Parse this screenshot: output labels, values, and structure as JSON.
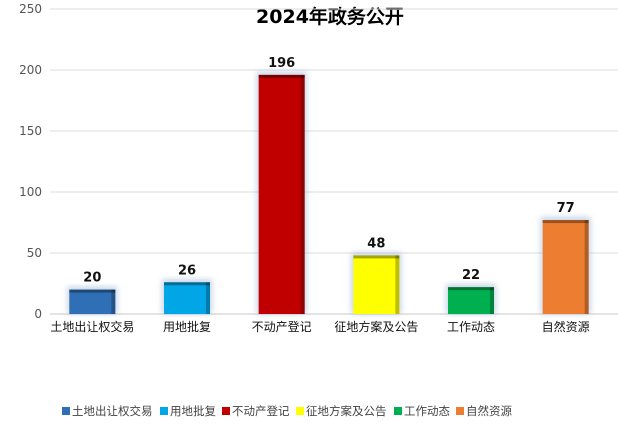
{
  "chart_data": {
    "type": "bar",
    "title": "2024年政务公开",
    "categories": [
      "土地出让权交易",
      "用地批复",
      "不动产登记",
      "征地方案及公告",
      "工作动态",
      "自然资源"
    ],
    "values": [
      20,
      26,
      196,
      48,
      22,
      77
    ],
    "colors": [
      "#2f6fb5",
      "#00a6e6",
      "#c00000",
      "#ffff00",
      "#00b050",
      "#ed7d31"
    ],
    "ylim": [
      0,
      250
    ],
    "yticks": [
      0,
      50,
      100,
      150,
      200,
      250
    ],
    "grid": true,
    "legend_position": "bottom",
    "legend": [
      "土地出让权交易",
      "用地批复",
      "不动产登记",
      "征地方案及公告",
      "工作动态",
      "自然资源"
    ]
  }
}
